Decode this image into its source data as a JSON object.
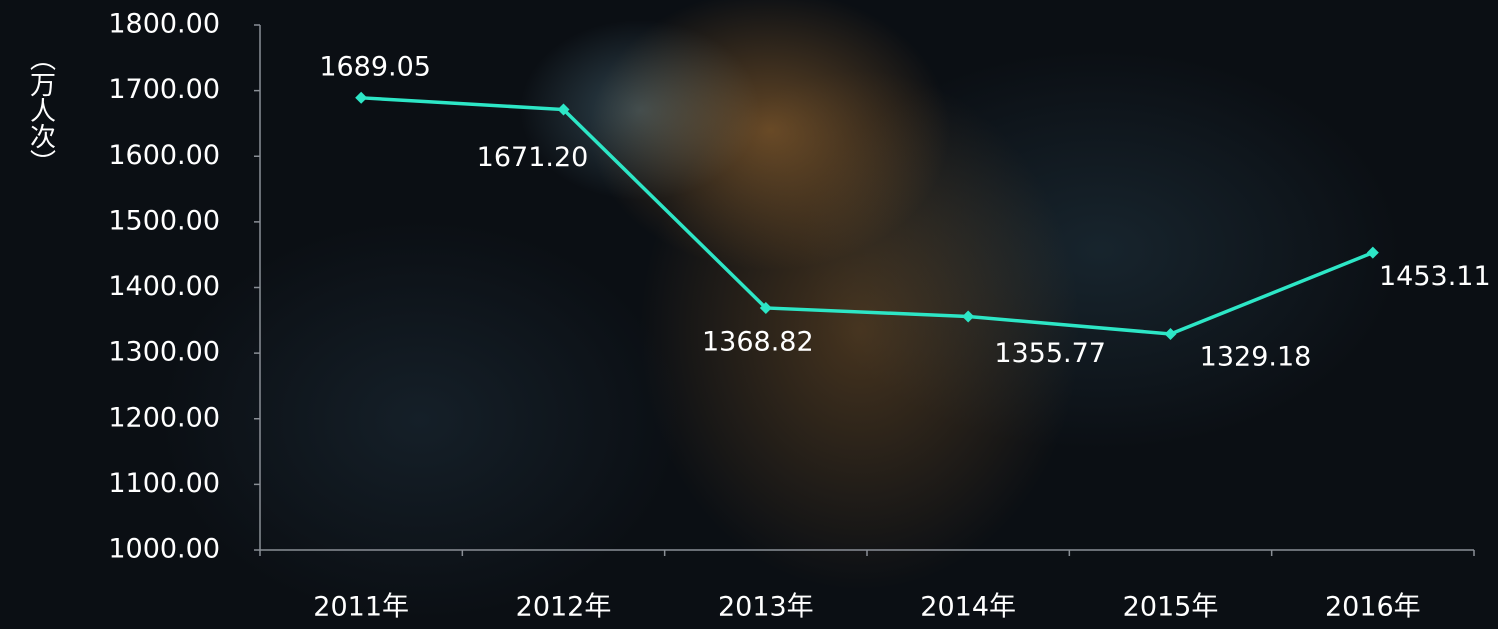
{
  "chart_data": {
    "type": "line",
    "y_label": "（万人次）",
    "categories": [
      "2011年",
      "2012年",
      "2013年",
      "2014年",
      "2015年",
      "2016年"
    ],
    "series": [
      {
        "color": "#2de6c6",
        "values": [
          1689.05,
          1671.2,
          1368.82,
          1355.77,
          1329.18,
          1453.11
        ],
        "value_labels": [
          "1689.05",
          "1671.20",
          "1368.82",
          "1355.77",
          "1329.18",
          "1453.11"
        ]
      }
    ],
    "ylim": [
      1000,
      1800
    ],
    "yticks": [
      {
        "value": 1000,
        "label": "1000.00"
      },
      {
        "value": 1100,
        "label": "1100.00"
      },
      {
        "value": 1200,
        "label": "1200.00"
      },
      {
        "value": 1300,
        "label": "1300.00"
      },
      {
        "value": 1400,
        "label": "1400.00"
      },
      {
        "value": 1500,
        "label": "1500.00"
      },
      {
        "value": 1600,
        "label": "1600.00"
      },
      {
        "value": 1700,
        "label": "1700.00"
      },
      {
        "value": 1800,
        "label": "1800.00"
      }
    ],
    "grid": false
  }
}
